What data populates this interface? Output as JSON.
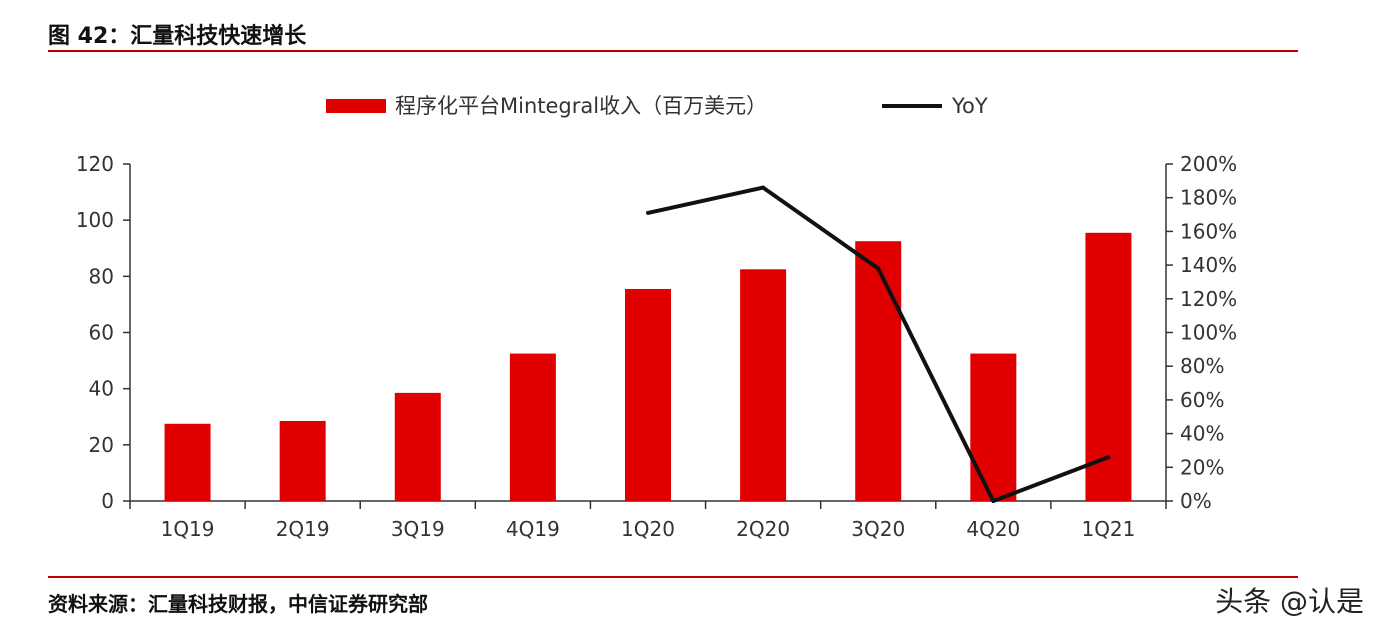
{
  "header": {
    "title": "图 42：汇量科技快速增长"
  },
  "footer": {
    "source": "资料来源：汇量科技财报，中信证券研究部",
    "watermark": "头条 @认是"
  },
  "colors": {
    "bar": "#e00000",
    "line": "#111111",
    "rule": "#c00000",
    "axis": "#333333"
  },
  "chart_data": {
    "type": "bar",
    "title": "",
    "categories": [
      "1Q19",
      "2Q19",
      "3Q19",
      "4Q19",
      "1Q20",
      "2Q20",
      "3Q20",
      "4Q20",
      "1Q21"
    ],
    "series": [
      {
        "name": "程序化平台Mintegral收入（百万美元）",
        "type": "bar",
        "axis": "left",
        "values": [
          27.5,
          28.5,
          38.5,
          52.5,
          75.5,
          82.5,
          92.5,
          52.5,
          95.5
        ]
      },
      {
        "name": "YoY",
        "type": "line",
        "axis": "right",
        "values": [
          null,
          null,
          null,
          null,
          1.71,
          1.86,
          1.38,
          0.0,
          0.26
        ]
      }
    ],
    "y_left": {
      "lim": [
        0,
        120
      ],
      "ticks": [
        "0",
        "20",
        "40",
        "60",
        "80",
        "100",
        "120"
      ]
    },
    "y_right": {
      "lim": [
        0,
        2.0
      ],
      "ticks": [
        "0%",
        "20%",
        "40%",
        "60%",
        "80%",
        "100%",
        "120%",
        "140%",
        "160%",
        "180%",
        "200%"
      ]
    },
    "legend": "top-center",
    "grid": false
  }
}
